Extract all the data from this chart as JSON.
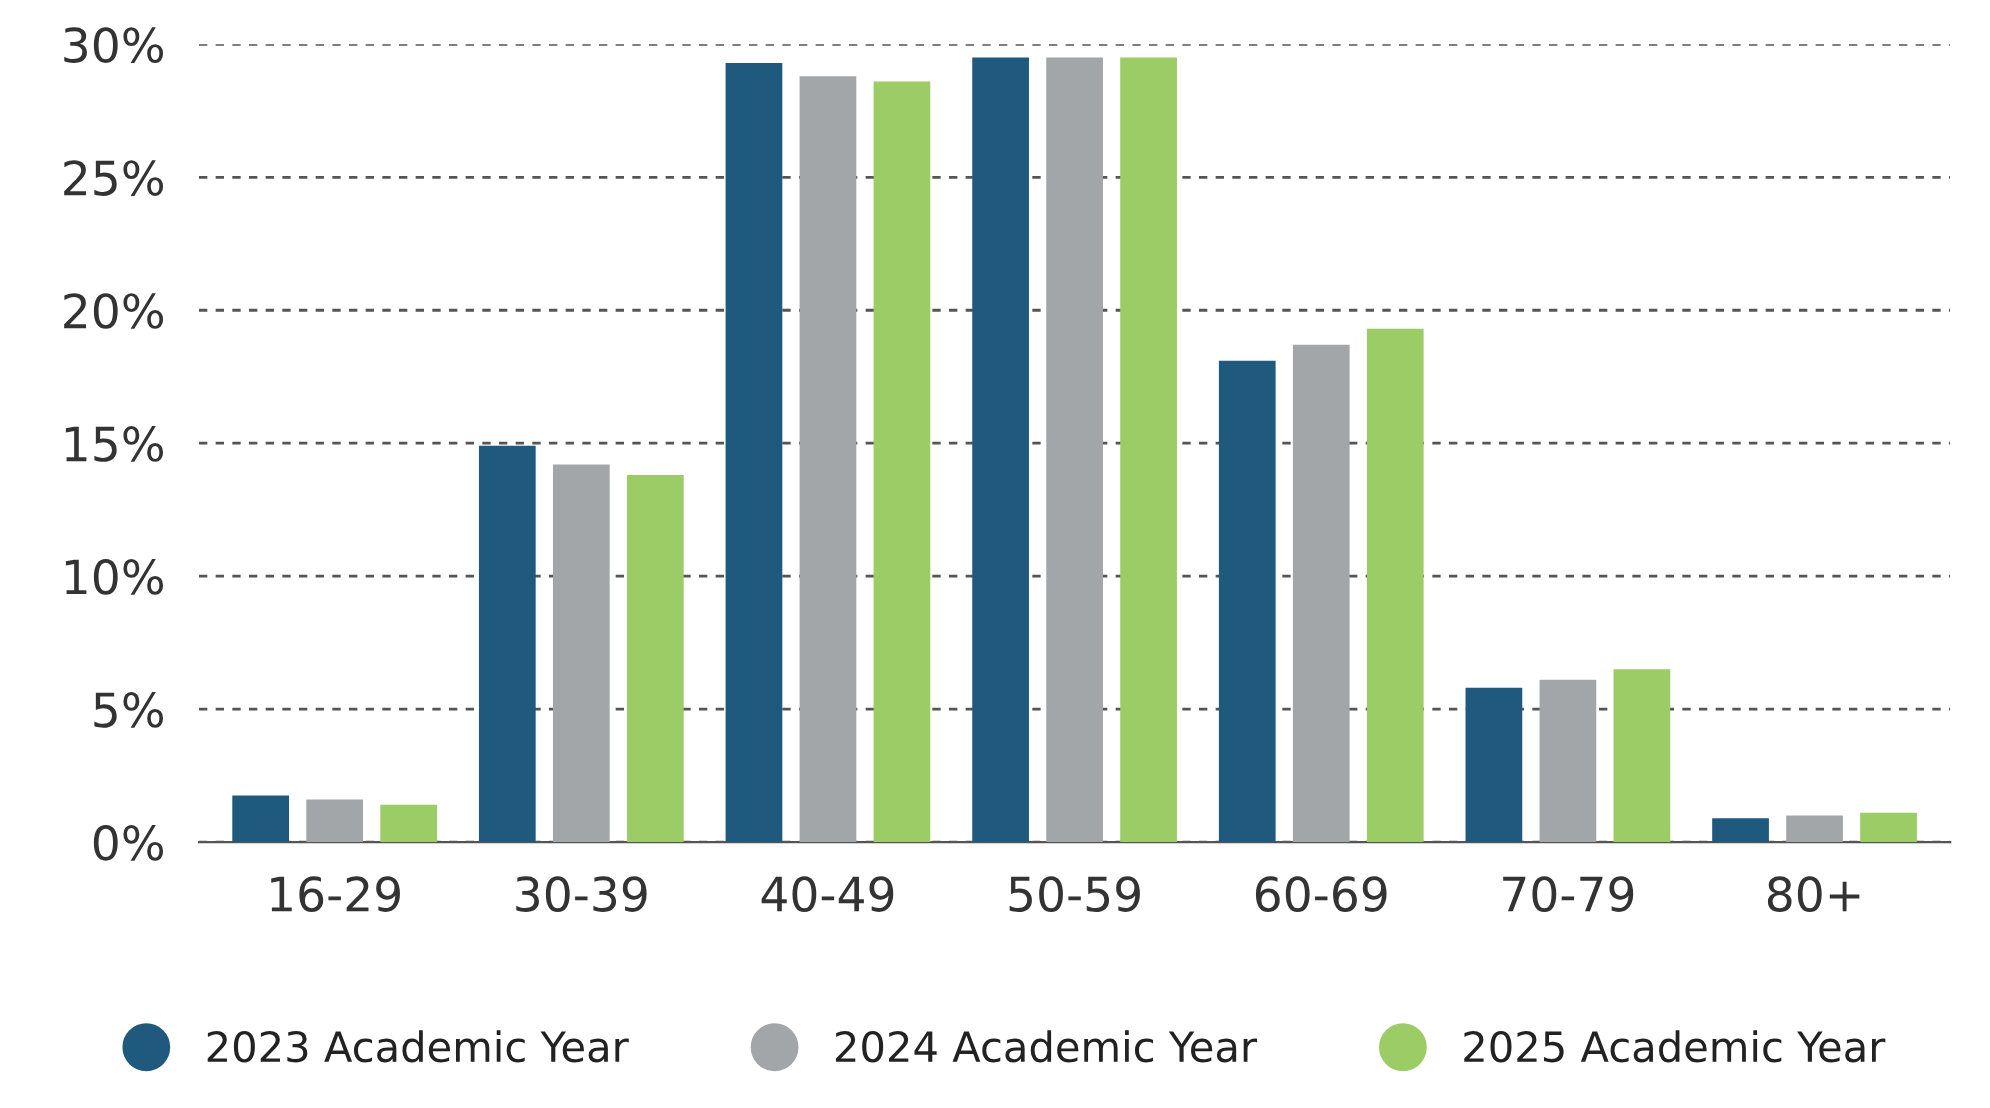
{
  "chart_data": {
    "type": "bar",
    "categories": [
      "16-29",
      "30-39",
      "40-49",
      "50-59",
      "60-69",
      "70-79",
      "80+"
    ],
    "series": [
      {
        "name": "2023 Academic Year",
        "color": "#1f5a7e",
        "values": [
          1.75,
          14.9,
          29.3,
          29.5,
          18.1,
          5.8,
          0.9
        ]
      },
      {
        "name": "2024 Academic Year",
        "color": "#a3a6a8",
        "values": [
          1.6,
          14.2,
          28.8,
          29.5,
          18.7,
          6.1,
          1.0
        ]
      },
      {
        "name": "2025 Academic Year",
        "color": "#9ccc65",
        "values": [
          1.4,
          13.8,
          28.6,
          29.5,
          19.3,
          6.5,
          1.1
        ]
      }
    ],
    "ylim": [
      0,
      30
    ],
    "yticks": [
      {
        "value": 0,
        "label": "0%"
      },
      {
        "value": 5,
        "label": "5%"
      },
      {
        "value": 10,
        "label": "10%"
      },
      {
        "value": 15,
        "label": "15%"
      },
      {
        "value": 20,
        "label": "20%"
      },
      {
        "value": 25,
        "label": "25%"
      },
      {
        "value": 30,
        "label": "30%"
      }
    ],
    "grid": "y",
    "legend": "bottom"
  }
}
